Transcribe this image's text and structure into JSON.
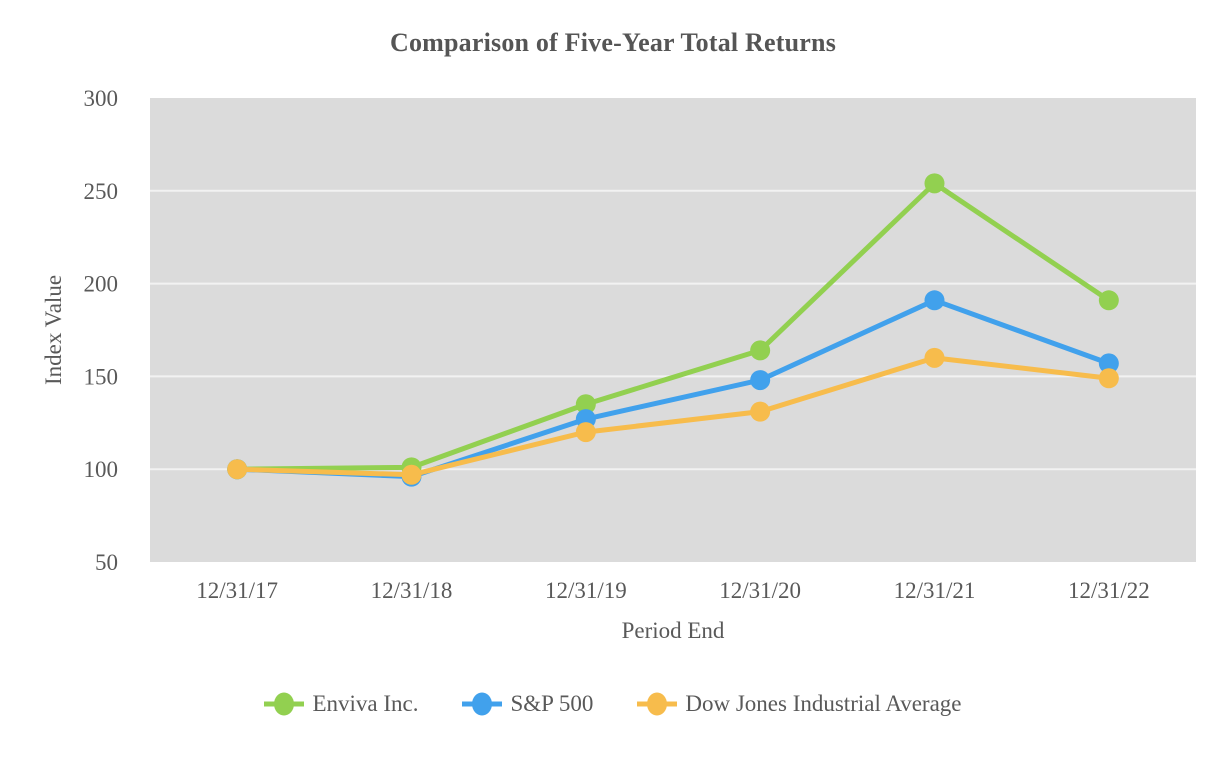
{
  "chart_data": {
    "type": "line",
    "title": "Comparison of Five-Year Total Returns",
    "xlabel": "Period End",
    "ylabel": "Index Value",
    "categories": [
      "12/31/17",
      "12/31/18",
      "12/31/19",
      "12/31/20",
      "12/31/21",
      "12/31/22"
    ],
    "series": [
      {
        "name": "Enviva Inc.",
        "color": "#92d050",
        "values": [
          100,
          101,
          135,
          164,
          254,
          191
        ]
      },
      {
        "name": "S&P 500",
        "color": "#41a1ec",
        "values": [
          100,
          96,
          127,
          148,
          191,
          157
        ]
      },
      {
        "name": "Dow Jones Industrial Average",
        "color": "#f7bc4c",
        "values": [
          100,
          97,
          120,
          131,
          160,
          149
        ]
      }
    ],
    "ylim": [
      50,
      300
    ],
    "y_ticks": [
      300,
      250,
      200,
      150,
      100,
      50
    ],
    "grid": true,
    "legend_position": "bottom",
    "marker": "circle",
    "plot_bg": "#dbdbdb",
    "grid_color": "#f2f2f2",
    "text_color": "#595959",
    "title_color": "#555555"
  }
}
